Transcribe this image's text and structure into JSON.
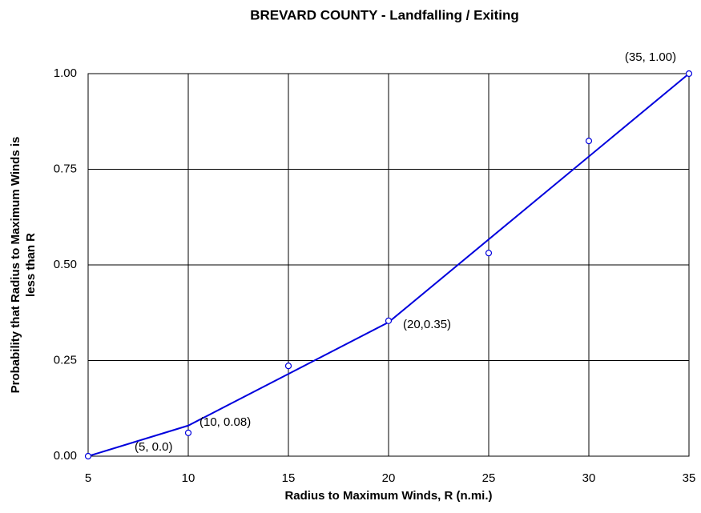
{
  "chart_data": {
    "type": "line",
    "title": "BREVARD COUNTY - Landfalling / Exiting",
    "xlabel": "Radius to Maximum Winds, R (n.mi.)",
    "ylabel": [
      "Probability that Radius to Maximum Winds is",
      "less than R"
    ],
    "series": [
      {
        "style": "line",
        "color": "#0000dd",
        "x": [
          5,
          10,
          20,
          35
        ],
        "values": [
          0.0,
          0.08,
          0.35,
          1.0
        ]
      },
      {
        "style": "markers",
        "color": "#0000dd",
        "x": [
          5,
          10,
          15,
          20,
          25,
          30,
          35
        ],
        "values": [
          0.0,
          0.061,
          0.236,
          0.354,
          0.531,
          0.824,
          1.0
        ]
      }
    ],
    "annotations": [
      "(35, 1.00)",
      "(20,0.35)",
      "(10, 0.08)",
      "(5, 0.0)"
    ],
    "xlim": [
      5,
      35
    ],
    "xticks": [
      5,
      10,
      15,
      20,
      25,
      30,
      35
    ],
    "ylim": [
      0,
      1
    ],
    "yticks": [
      {
        "value": 0,
        "label": "0.00"
      },
      {
        "value": 0.25,
        "label": "0.25"
      },
      {
        "value": 0.5,
        "label": "0.50"
      },
      {
        "value": 0.75,
        "label": "0.75"
      },
      {
        "value": 1,
        "label": "1.00"
      }
    ],
    "grid": true
  }
}
